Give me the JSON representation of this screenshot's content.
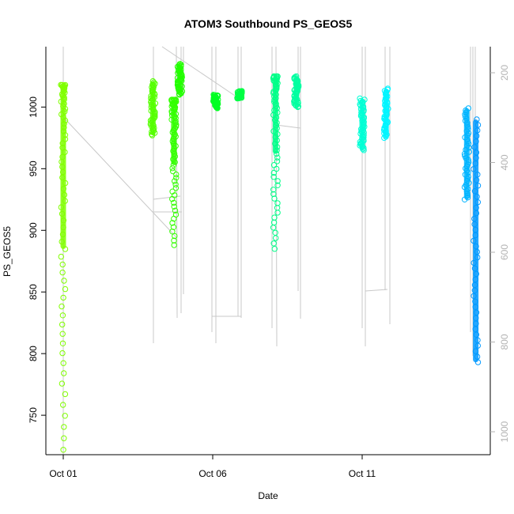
{
  "chart_data": {
    "type": "scatter",
    "title": "ATOM3 Southbound PS_GEOS5",
    "xlabel": "Date",
    "ylabel": "PS_GEOS5",
    "x_ticks": [
      "Oct 01",
      "Oct 06",
      "Oct 11"
    ],
    "y_ticks": [
      750,
      800,
      850,
      900,
      950,
      1000
    ],
    "ylim": [
      718,
      1049
    ],
    "y2_ticks": [
      200,
      400,
      600,
      800,
      1000
    ],
    "y2_reversed": true,
    "x_range_days": [
      0.0,
      14.5
    ],
    "grid": false,
    "clusters": [
      {
        "day": 0.0,
        "ymin": 722,
        "ymax": 1018,
        "color": "#80ff00",
        "sparse": true
      },
      {
        "day": 3.0,
        "ymin": 977,
        "ymax": 1021,
        "color": "#55ff00"
      },
      {
        "day": 3.7,
        "ymin": 888,
        "ymax": 1006,
        "color": "#33ff00",
        "sparse": true
      },
      {
        "day": 3.9,
        "ymin": 1010,
        "ymax": 1035,
        "color": "#22ff00"
      },
      {
        "day": 5.1,
        "ymin": 999,
        "ymax": 1010,
        "color": "#00ff22"
      },
      {
        "day": 5.9,
        "ymin": 1007,
        "ymax": 1013,
        "color": "#00ff44"
      },
      {
        "day": 7.1,
        "ymin": 885,
        "ymax": 1025,
        "color": "#00ff88",
        "sparse": true
      },
      {
        "day": 7.8,
        "ymin": 1000,
        "ymax": 1025,
        "color": "#00ffa0"
      },
      {
        "day": 10.0,
        "ymin": 965,
        "ymax": 1007,
        "color": "#00ffd5"
      },
      {
        "day": 10.8,
        "ymin": 975,
        "ymax": 1015,
        "color": "#00f5ff"
      },
      {
        "day": 13.5,
        "ymin": 925,
        "ymax": 999,
        "color": "#00b4ff"
      },
      {
        "day": 13.8,
        "ymin": 793,
        "ymax": 990,
        "color": "#0099ff"
      }
    ]
  }
}
